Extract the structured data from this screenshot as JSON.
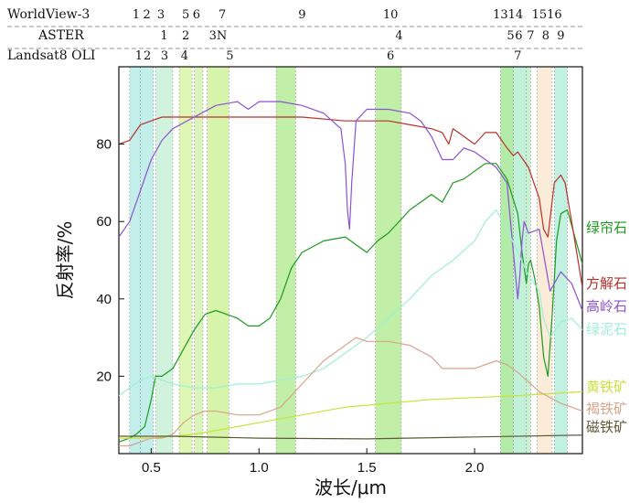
{
  "chart_data": {
    "type": "line",
    "title": "",
    "xlabel": "波长/μm",
    "ylabel": "反射率/%",
    "xlim": [
      0.35,
      2.5
    ],
    "ylim": [
      0,
      100
    ],
    "xticks": [
      0.5,
      1.0,
      1.5,
      2.0
    ],
    "xtick_labels": [
      "0.5",
      "1.0",
      "1.5",
      "2.0"
    ],
    "yticks": [
      20,
      40,
      60,
      80
    ],
    "ytick_labels": [
      "20",
      "40",
      "60",
      "80"
    ],
    "sensors": [
      {
        "name": "WorldView-3",
        "bands": [
          {
            "label": "1",
            "x": 0.43
          },
          {
            "label": "2",
            "x": 0.48
          },
          {
            "label": "3",
            "x": 0.545
          },
          {
            "label": "5",
            "x": 0.66
          },
          {
            "label": "6",
            "x": 0.71
          },
          {
            "label": "7",
            "x": 0.83
          },
          {
            "label": "9",
            "x": 1.2
          },
          {
            "label": "10",
            "x": 1.61
          },
          {
            "label": "13",
            "x": 2.12
          },
          {
            "label": "14",
            "x": 2.19
          },
          {
            "label": "15",
            "x": 2.3
          },
          {
            "label": "16",
            "x": 2.37
          }
        ]
      },
      {
        "name": "ASTER",
        "bands": [
          {
            "label": "1",
            "x": 0.56
          },
          {
            "label": "2",
            "x": 0.66
          },
          {
            "label": "3N",
            "x": 0.81
          },
          {
            "label": "4",
            "x": 1.65
          },
          {
            "label": "5",
            "x": 2.167
          },
          {
            "label": "6",
            "x": 2.205
          },
          {
            "label": "7",
            "x": 2.26
          },
          {
            "label": "8",
            "x": 2.33
          },
          {
            "label": "9",
            "x": 2.4
          }
        ]
      },
      {
        "name": "Landsat8 OLI",
        "bands": [
          {
            "label": "1",
            "x": 0.443
          },
          {
            "label": "2",
            "x": 0.482
          },
          {
            "label": "3",
            "x": 0.562
          },
          {
            "label": "4",
            "x": 0.655
          },
          {
            "label": "5",
            "x": 0.865
          },
          {
            "label": "6",
            "x": 1.61
          },
          {
            "label": "7",
            "x": 2.2
          }
        ]
      }
    ],
    "band_regions": [
      {
        "start": 0.4,
        "end": 0.45,
        "color": "#b8ece8"
      },
      {
        "start": 0.45,
        "end": 0.51,
        "color": "#b8ece8"
      },
      {
        "start": 0.52,
        "end": 0.6,
        "color": "#c9f0d6"
      },
      {
        "start": 0.63,
        "end": 0.69,
        "color": "#d8f6a8"
      },
      {
        "start": 0.7,
        "end": 0.74,
        "color": "#d4f2b0"
      },
      {
        "start": 0.76,
        "end": 0.86,
        "color": "#d0f29c"
      },
      {
        "start": 1.08,
        "end": 1.17,
        "color": "#b7ec98"
      },
      {
        "start": 1.54,
        "end": 1.66,
        "color": "#b7ec98"
      },
      {
        "start": 2.12,
        "end": 2.18,
        "color": "#a6e89a"
      },
      {
        "start": 2.18,
        "end": 2.24,
        "color": "#b7efd2"
      },
      {
        "start": 2.24,
        "end": 2.26,
        "color": "#c2eecb"
      },
      {
        "start": 2.29,
        "end": 2.36,
        "color": "#fae8d2"
      },
      {
        "start": 2.37,
        "end": 2.43,
        "color": "#b6eeda"
      }
    ],
    "series": [
      {
        "name": "绿帘石",
        "color": "#1d9a1d",
        "x": [
          0.35,
          0.4,
          0.43,
          0.47,
          0.5,
          0.52,
          0.55,
          0.6,
          0.65,
          0.7,
          0.75,
          0.8,
          0.85,
          0.9,
          0.95,
          1.0,
          1.05,
          1.1,
          1.15,
          1.2,
          1.3,
          1.4,
          1.45,
          1.5,
          1.55,
          1.6,
          1.7,
          1.8,
          1.85,
          1.9,
          1.95,
          2.0,
          2.05,
          2.1,
          2.15,
          2.2,
          2.22,
          2.24,
          2.25,
          2.26,
          2.28,
          2.3,
          2.32,
          2.34,
          2.36,
          2.38,
          2.4,
          2.43,
          2.45,
          2.5
        ],
        "y": [
          3,
          4,
          5,
          7,
          14,
          20,
          20,
          22,
          27,
          32,
          36,
          37,
          36,
          35,
          33,
          33,
          35,
          40,
          48,
          52,
          55,
          56,
          54,
          52,
          55,
          57,
          63,
          67,
          65,
          70,
          71,
          73,
          75,
          75,
          71,
          62,
          52,
          44,
          49,
          50,
          45,
          38,
          25,
          20,
          36,
          55,
          62,
          63,
          59,
          49
        ]
      },
      {
        "name": "方解石",
        "color": "#b5322e",
        "x": [
          0.35,
          0.4,
          0.45,
          0.5,
          0.55,
          0.6,
          0.7,
          0.8,
          1.0,
          1.2,
          1.4,
          1.6,
          1.7,
          1.8,
          1.85,
          1.88,
          1.9,
          1.95,
          2.0,
          2.05,
          2.1,
          2.15,
          2.18,
          2.2,
          2.25,
          2.3,
          2.32,
          2.34,
          2.37,
          2.4,
          2.42,
          2.45,
          2.5
        ],
        "y": [
          80,
          81,
          85,
          86,
          87,
          87,
          87,
          87,
          87,
          87,
          86,
          86,
          85,
          84,
          83,
          80,
          84,
          82,
          80,
          83,
          83,
          79,
          77,
          78,
          74,
          66,
          58,
          56,
          70,
          72,
          70,
          60,
          43
        ]
      },
      {
        "name": "高岭石",
        "color": "#8c52d2",
        "x": [
          0.35,
          0.4,
          0.45,
          0.5,
          0.55,
          0.6,
          0.7,
          0.8,
          0.9,
          0.95,
          1.0,
          1.1,
          1.2,
          1.3,
          1.38,
          1.4,
          1.41,
          1.42,
          1.43,
          1.45,
          1.5,
          1.6,
          1.7,
          1.75,
          1.8,
          1.85,
          1.9,
          1.95,
          2.0,
          2.05,
          2.1,
          2.15,
          2.16,
          2.18,
          2.2,
          2.21,
          2.22,
          2.23,
          2.25,
          2.3,
          2.35,
          2.4,
          2.45,
          2.5
        ],
        "y": [
          56,
          60,
          68,
          76,
          81,
          84,
          87,
          90,
          91,
          89,
          91,
          91,
          90,
          88,
          84,
          75,
          63,
          58,
          70,
          86,
          89,
          89,
          88,
          86,
          82,
          76,
          76,
          79,
          78,
          76,
          74,
          70,
          64,
          52,
          40,
          46,
          55,
          60,
          57,
          58,
          42,
          47,
          44,
          37
        ]
      },
      {
        "name": "绿泥石",
        "color": "#9ef0d5",
        "x": [
          0.35,
          0.4,
          0.45,
          0.5,
          0.55,
          0.6,
          0.7,
          0.8,
          0.9,
          1.0,
          1.1,
          1.2,
          1.3,
          1.4,
          1.5,
          1.6,
          1.7,
          1.8,
          1.9,
          2.0,
          2.05,
          2.1,
          2.15,
          2.2,
          2.25,
          2.3,
          2.32,
          2.35,
          2.4,
          2.45,
          2.5
        ],
        "y": [
          15,
          17,
          19,
          20,
          19,
          18,
          17,
          17,
          18,
          18,
          19,
          20,
          22,
          26,
          30,
          35,
          40,
          46,
          50,
          55,
          60,
          63,
          58,
          52,
          46,
          42,
          35,
          30,
          34,
          35,
          32
        ]
      },
      {
        "name": "黄铁矿",
        "color": "#c8e23c",
        "x": [
          0.35,
          0.5,
          0.7,
          0.9,
          1.0,
          1.2,
          1.4,
          1.6,
          1.8,
          2.0,
          2.2,
          2.5
        ],
        "y": [
          4,
          4,
          5,
          7,
          8,
          10,
          12,
          13,
          14,
          14.5,
          15,
          16
        ]
      },
      {
        "name": "褐铁矿",
        "color": "#d8a48a",
        "x": [
          0.35,
          0.4,
          0.45,
          0.5,
          0.55,
          0.6,
          0.65,
          0.7,
          0.75,
          0.8,
          0.9,
          1.0,
          1.1,
          1.2,
          1.3,
          1.4,
          1.45,
          1.5,
          1.6,
          1.7,
          1.8,
          1.85,
          1.9,
          1.95,
          2.0,
          2.1,
          2.15,
          2.2,
          2.3,
          2.4,
          2.5
        ],
        "y": [
          2,
          2,
          3,
          4,
          4,
          5,
          8,
          10,
          11,
          11,
          10,
          10,
          12,
          18,
          24,
          28,
          30,
          29,
          29,
          28,
          25,
          22,
          22,
          22,
          22,
          24,
          23,
          21,
          16,
          13,
          11
        ]
      },
      {
        "name": "磁铁矿",
        "color": "#5e5a36",
        "x": [
          0.35,
          0.6,
          1.0,
          1.5,
          2.0,
          2.5
        ],
        "y": [
          4.5,
          4.5,
          4.0,
          3.8,
          4.3,
          4.8
        ]
      }
    ]
  }
}
